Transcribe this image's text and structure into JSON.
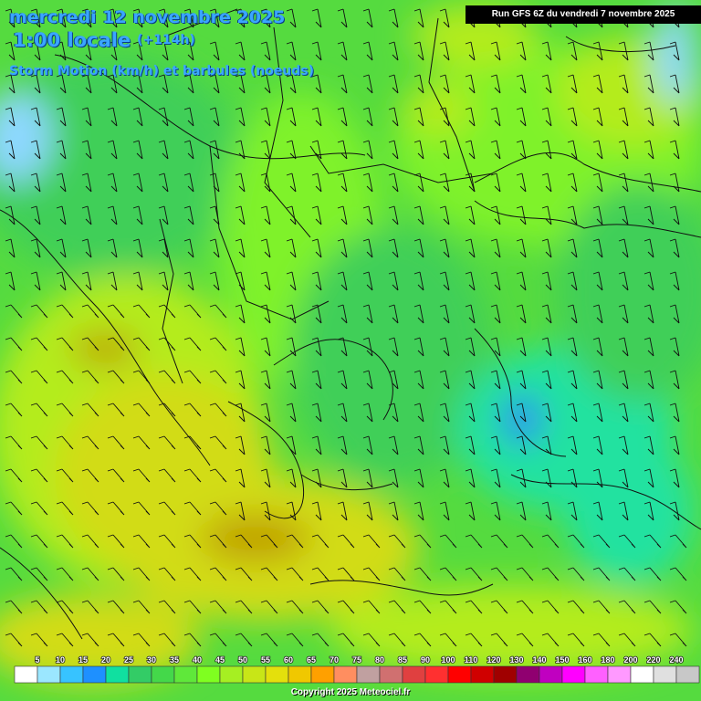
{
  "header": {
    "date": "mercredi 12 novembre 2025",
    "time": "1:00 locale",
    "offset": "(+114h)",
    "parameter": "Storm Motion (km/h) et barbules (noeuds)"
  },
  "run_info": "Run GFS 6Z du vendredi 7 novembre 2025",
  "copyright": "Copyright 2025 Meteociel.fr",
  "legend": {
    "ticks": [
      "5",
      "10",
      "15",
      "20",
      "25",
      "30",
      "35",
      "40",
      "45",
      "50",
      "55",
      "60",
      "65",
      "70",
      "75",
      "80",
      "85",
      "90",
      "100",
      "110",
      "120",
      "130",
      "140",
      "150",
      "160",
      "180",
      "200",
      "220",
      "240"
    ],
    "colors": [
      "#ffffff",
      "#9be7ff",
      "#37c3ff",
      "#1e90ff",
      "#10e0a0",
      "#33cc66",
      "#44d84a",
      "#5fe83a",
      "#7fff20",
      "#a6ef22",
      "#c8e617",
      "#e4e00c",
      "#f0c800",
      "#ffa000",
      "#ff8e60",
      "#c0a0a0",
      "#d07070",
      "#e04040",
      "#ff3030",
      "#ff0000",
      "#d00000",
      "#a00000",
      "#900070",
      "#c000c0",
      "#ff00ff",
      "#ff60ff",
      "#ff99ff",
      "#ffffff",
      "#e0e0e0",
      "#c8c8c8"
    ]
  },
  "wind_field": {
    "direction": "north-northwest",
    "palette": {
      "teal": "#20e2a0",
      "green_dark": "#3fcf58",
      "green": "#55db3f",
      "green_light": "#7ff22a",
      "lime": "#b4ec1e",
      "yellow": "#d2dc12",
      "olive": "#c0a000",
      "blue": "#2f8bf2",
      "light_blue": "#8ed8ff"
    }
  }
}
